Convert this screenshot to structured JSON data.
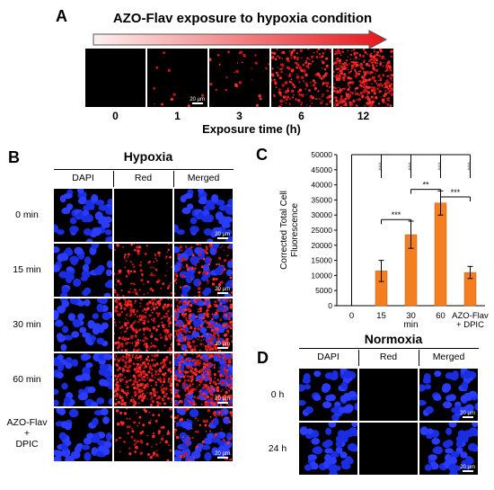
{
  "panel_a": {
    "label": "A",
    "title": "AZO-Flav exposure to hypoxia condition",
    "times": [
      "0",
      "1",
      "3",
      "6",
      "12"
    ],
    "red_levels": [
      0,
      0.02,
      0.06,
      0.45,
      0.85
    ],
    "xlabel": "Exposure time (h)",
    "scale_text": "20 µm"
  },
  "panel_b": {
    "label": "B",
    "title": "Hypoxia",
    "columns": [
      "DAPI",
      "Red",
      "Merged"
    ],
    "rows": [
      "0 min",
      "15 min",
      "30 min",
      "60 min",
      "AZO-Flav\n+\nDPIC"
    ],
    "red_levels": [
      0,
      0.25,
      0.7,
      0.85,
      0.2
    ],
    "scale_text": "20 µm"
  },
  "panel_d": {
    "label": "D",
    "title": "Normoxia",
    "columns": [
      "DAPI",
      "Red",
      "Merged"
    ],
    "rows": [
      "0 h",
      "24 h"
    ],
    "red_levels": [
      0,
      0
    ],
    "scale_text": "20 µm"
  },
  "chart_data": {
    "label": "C",
    "type": "bar",
    "categories": [
      "0",
      "15",
      "30",
      "60",
      "AZO-Flav\n+ DPIC"
    ],
    "values": [
      0,
      11500,
      23500,
      34000,
      11000
    ],
    "errors": [
      0,
      3500,
      4500,
      4000,
      2000
    ],
    "xlabel": "min",
    "ylabel": "Corrected Total Cell Fluorescence",
    "ylim": [
      0,
      50000
    ],
    "yticks": [
      "0",
      "5000",
      "10000",
      "15000",
      "20000",
      "25000",
      "30000",
      "35000",
      "40000",
      "45000",
      "50000"
    ],
    "bar_color": "#f47f20",
    "significance": [
      "***",
      "***",
      "***",
      "***",
      "***",
      "**",
      "***"
    ]
  }
}
